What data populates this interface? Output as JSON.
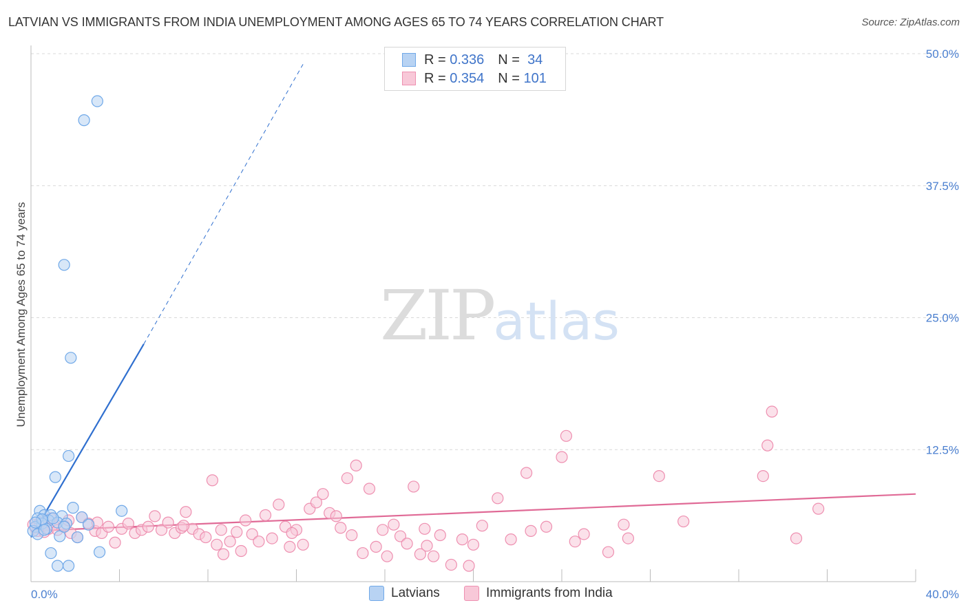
{
  "title": "LATVIAN VS IMMIGRANTS FROM INDIA UNEMPLOYMENT AMONG AGES 65 TO 74 YEARS CORRELATION CHART",
  "source": "Source: ZipAtlas.com",
  "watermark": {
    "zip": "ZIP",
    "atlas": "atlas"
  },
  "legend": {
    "r_label": "R =",
    "n_label": "N =",
    "rows": [
      {
        "name": "Latvians",
        "r": "0.336",
        "n": "34"
      },
      {
        "name": "Immigrants from India",
        "r": "0.354",
        "n": "101"
      }
    ]
  },
  "colors": {
    "blue": "#6fa8e8",
    "blue_fill": "#b8d3f3",
    "blue_line": "#2f6fcf",
    "pink": "#ee8fb0",
    "pink_fill": "#f8c8d8",
    "pink_line": "#e06a96",
    "tick": "#4a7fd0",
    "grid": "#d8d8d8"
  },
  "chart_data": {
    "type": "scatter",
    "title": "LATVIAN VS IMMIGRANTS FROM INDIA UNEMPLOYMENT AMONG AGES 65 TO 74 YEARS CORRELATION CHART",
    "xlabel": "",
    "ylabel": "Unemployment Among Ages 65 to 74 years",
    "xlim": [
      0,
      40
    ],
    "ylim": [
      0,
      50
    ],
    "x_tick_labels": [
      "0.0%",
      "40.0%"
    ],
    "y_ticks": [
      12.5,
      25.0,
      37.5,
      50.0
    ],
    "y_tick_labels": [
      "12.5%",
      "25.0%",
      "37.5%",
      "50.0%"
    ],
    "grid": true,
    "series": [
      {
        "name": "Latvians",
        "r": 0.336,
        "n": 34,
        "trend": {
          "x0": 0.0,
          "y0": 4.2,
          "x1": 5.1,
          "y1": 22.5,
          "dash_x1": 12.3,
          "dash_y1": 49.0
        },
        "points": [
          [
            3.0,
            45.5
          ],
          [
            2.4,
            43.7
          ],
          [
            1.5,
            30.0
          ],
          [
            1.8,
            21.2
          ],
          [
            1.7,
            11.9
          ],
          [
            1.1,
            9.9
          ],
          [
            0.4,
            6.7
          ],
          [
            0.6,
            6.3
          ],
          [
            0.9,
            6.3
          ],
          [
            1.4,
            6.2
          ],
          [
            1.9,
            7.0
          ],
          [
            0.3,
            6.0
          ],
          [
            0.8,
            5.8
          ],
          [
            1.2,
            5.6
          ],
          [
            2.3,
            6.1
          ],
          [
            0.5,
            5.5
          ],
          [
            1.6,
            5.5
          ],
          [
            2.6,
            5.4
          ],
          [
            0.2,
            5.2
          ],
          [
            0.7,
            5.0
          ],
          [
            0.1,
            4.8
          ],
          [
            0.3,
            4.5
          ],
          [
            2.1,
            4.2
          ],
          [
            4.1,
            6.7
          ],
          [
            1.3,
            4.3
          ],
          [
            0.9,
            2.7
          ],
          [
            3.1,
            2.8
          ],
          [
            1.2,
            1.5
          ],
          [
            1.7,
            1.5
          ],
          [
            0.5,
            5.9
          ],
          [
            1.0,
            6.0
          ],
          [
            0.2,
            5.6
          ],
          [
            0.6,
            4.9
          ],
          [
            1.5,
            5.2
          ]
        ]
      },
      {
        "name": "Immigrants from India",
        "r": 0.354,
        "n": 101,
        "trend": {
          "x0": 0.0,
          "y0": 4.8,
          "x1": 40.0,
          "y1": 8.3
        },
        "points": [
          [
            0.1,
            5.4
          ],
          [
            0.2,
            5.1
          ],
          [
            0.3,
            4.8
          ],
          [
            0.4,
            5.6
          ],
          [
            0.5,
            5.3
          ],
          [
            0.6,
            4.7
          ],
          [
            0.8,
            5.0
          ],
          [
            1.0,
            5.4
          ],
          [
            1.2,
            4.9
          ],
          [
            1.5,
            5.3
          ],
          [
            1.8,
            4.6
          ],
          [
            2.1,
            4.2
          ],
          [
            2.3,
            6.1
          ],
          [
            2.6,
            5.5
          ],
          [
            2.9,
            4.8
          ],
          [
            3.2,
            4.6
          ],
          [
            3.5,
            5.2
          ],
          [
            3.8,
            3.7
          ],
          [
            4.1,
            5.0
          ],
          [
            4.4,
            5.5
          ],
          [
            4.7,
            4.6
          ],
          [
            5.0,
            4.9
          ],
          [
            5.3,
            5.2
          ],
          [
            5.6,
            6.2
          ],
          [
            5.9,
            4.9
          ],
          [
            6.2,
            5.6
          ],
          [
            6.5,
            4.6
          ],
          [
            6.8,
            5.1
          ],
          [
            7.0,
            6.6
          ],
          [
            7.3,
            5.0
          ],
          [
            7.6,
            4.5
          ],
          [
            7.9,
            4.2
          ],
          [
            8.2,
            9.6
          ],
          [
            8.4,
            3.5
          ],
          [
            8.7,
            2.6
          ],
          [
            9.0,
            3.8
          ],
          [
            9.3,
            4.7
          ],
          [
            9.5,
            2.9
          ],
          [
            9.7,
            5.8
          ],
          [
            10.0,
            4.5
          ],
          [
            10.3,
            3.8
          ],
          [
            10.6,
            6.3
          ],
          [
            10.9,
            4.1
          ],
          [
            11.2,
            7.3
          ],
          [
            11.5,
            5.2
          ],
          [
            11.7,
            3.3
          ],
          [
            12.0,
            4.9
          ],
          [
            12.3,
            3.5
          ],
          [
            12.6,
            6.9
          ],
          [
            12.9,
            7.5
          ],
          [
            13.2,
            8.3
          ],
          [
            13.5,
            6.5
          ],
          [
            13.8,
            6.2
          ],
          [
            14.0,
            5.1
          ],
          [
            14.3,
            9.8
          ],
          [
            14.7,
            11.0
          ],
          [
            15.0,
            2.7
          ],
          [
            15.3,
            8.8
          ],
          [
            15.6,
            3.3
          ],
          [
            15.9,
            4.9
          ],
          [
            16.1,
            2.4
          ],
          [
            16.4,
            5.4
          ],
          [
            16.7,
            4.3
          ],
          [
            17.0,
            3.6
          ],
          [
            17.3,
            9.0
          ],
          [
            17.6,
            2.6
          ],
          [
            17.9,
            3.4
          ],
          [
            18.2,
            2.4
          ],
          [
            18.5,
            4.4
          ],
          [
            19.0,
            1.6
          ],
          [
            19.5,
            4.0
          ],
          [
            19.8,
            1.5
          ],
          [
            20.0,
            3.5
          ],
          [
            20.4,
            5.3
          ],
          [
            21.1,
            7.9
          ],
          [
            21.7,
            4.0
          ],
          [
            22.4,
            10.3
          ],
          [
            23.3,
            5.2
          ],
          [
            24.0,
            11.8
          ],
          [
            24.2,
            13.8
          ],
          [
            24.6,
            3.8
          ],
          [
            25.0,
            4.5
          ],
          [
            26.1,
            2.8
          ],
          [
            27.0,
            4.1
          ],
          [
            28.4,
            10.0
          ],
          [
            29.5,
            5.7
          ],
          [
            33.1,
            10.0
          ],
          [
            33.3,
            12.9
          ],
          [
            33.5,
            16.1
          ],
          [
            34.6,
            4.1
          ],
          [
            35.6,
            6.9
          ],
          [
            0.9,
            6.0
          ],
          [
            1.7,
            5.8
          ],
          [
            3.0,
            5.6
          ],
          [
            6.9,
            5.3
          ],
          [
            8.6,
            4.9
          ],
          [
            11.8,
            4.6
          ],
          [
            14.5,
            4.4
          ],
          [
            17.8,
            5.0
          ],
          [
            22.6,
            4.8
          ],
          [
            26.8,
            5.4
          ]
        ]
      }
    ]
  }
}
